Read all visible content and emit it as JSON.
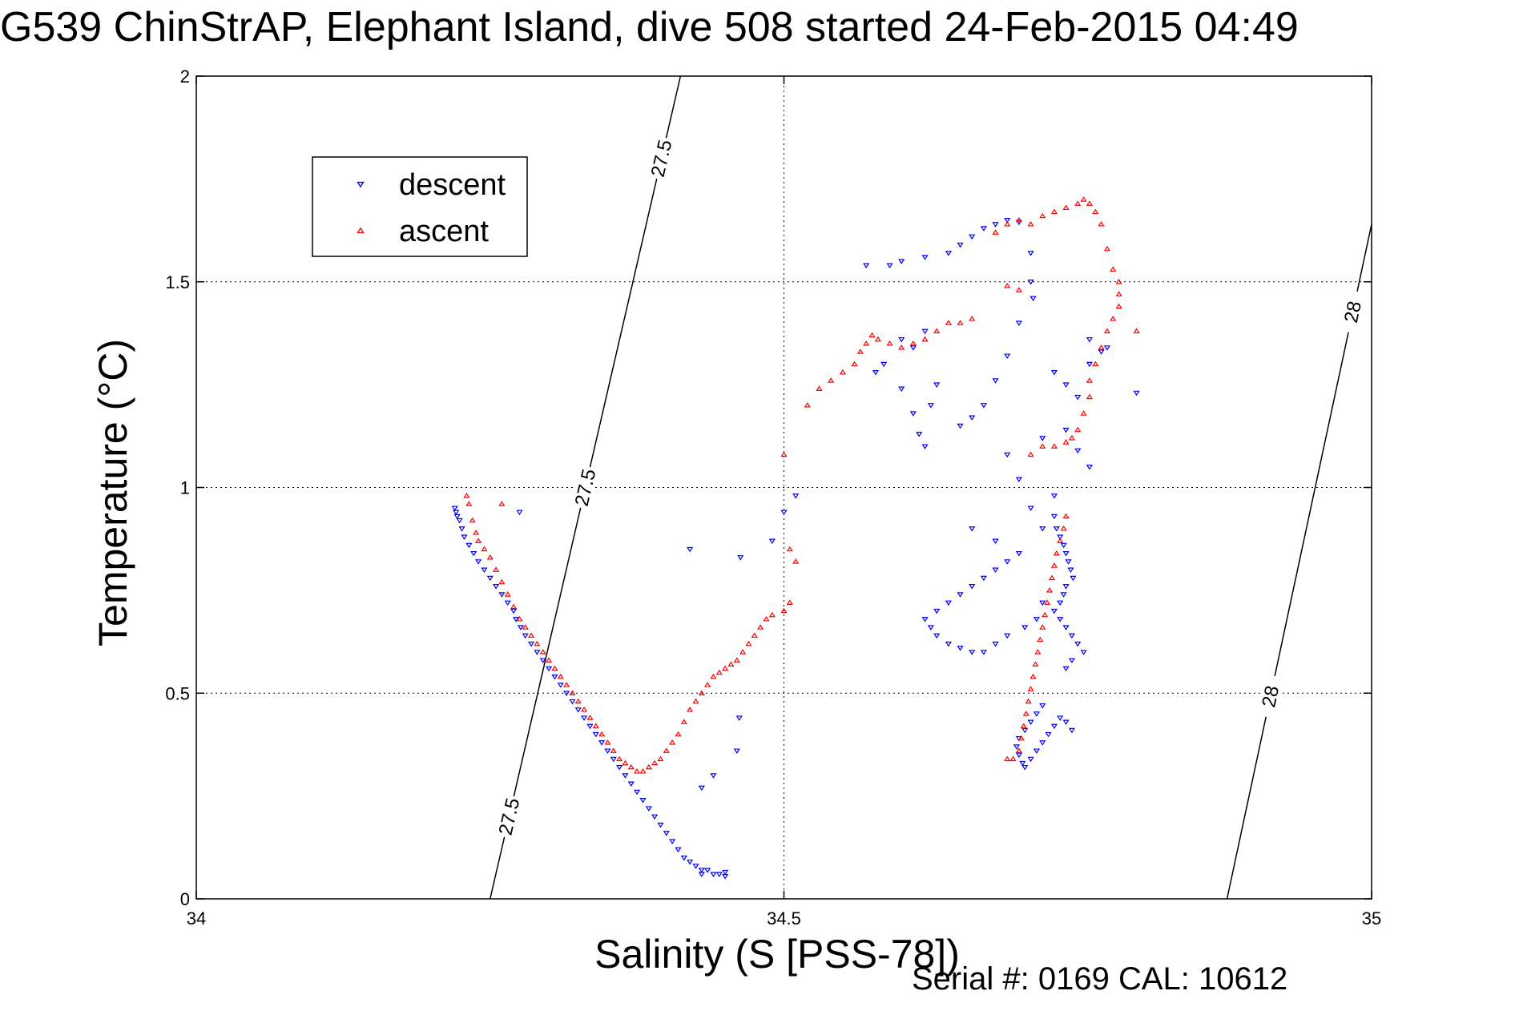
{
  "chart_data": {
    "type": "scatter",
    "title": "G539 ChinStrAP, Elephant Island, dive 508 started 24-Feb-2015 04:49",
    "xlabel": "Salinity (S [PSS-78])",
    "ylabel": "Temperature (°C)",
    "xlim": [
      34,
      35
    ],
    "ylim": [
      0,
      2
    ],
    "x_ticks": [
      "34",
      "34.5",
      "35"
    ],
    "y_ticks": [
      "0",
      "0.5",
      "1",
      "1.5",
      "2"
    ],
    "grid": true,
    "legend_position": "top-left",
    "footnote": "Serial #: 0169 CAL: 10612",
    "density_contours": [
      {
        "label": "27.5",
        "points": [
          [
            34.25,
            0.0
          ],
          [
            34.412,
            2.0
          ]
        ]
      },
      {
        "label": "28",
        "points": [
          [
            34.877,
            0.0
          ],
          [
            35.0,
            1.64
          ]
        ]
      }
    ],
    "series": [
      {
        "name": "descent",
        "color": "#0000ff",
        "marker": "triangle-down",
        "points": [
          [
            34.22,
            0.95
          ],
          [
            34.221,
            0.94
          ],
          [
            34.222,
            0.93
          ],
          [
            34.224,
            0.92
          ],
          [
            34.226,
            0.9
          ],
          [
            34.228,
            0.88
          ],
          [
            34.232,
            0.86
          ],
          [
            34.236,
            0.84
          ],
          [
            34.24,
            0.82
          ],
          [
            34.245,
            0.8
          ],
          [
            34.25,
            0.78
          ],
          [
            34.255,
            0.76
          ],
          [
            34.26,
            0.74
          ],
          [
            34.265,
            0.72
          ],
          [
            34.27,
            0.7
          ],
          [
            34.272,
            0.68
          ],
          [
            34.276,
            0.66
          ],
          [
            34.28,
            0.64
          ],
          [
            34.285,
            0.62
          ],
          [
            34.29,
            0.6
          ],
          [
            34.295,
            0.58
          ],
          [
            34.3,
            0.56
          ],
          [
            34.305,
            0.54
          ],
          [
            34.31,
            0.52
          ],
          [
            34.315,
            0.5
          ],
          [
            34.32,
            0.48
          ],
          [
            34.325,
            0.46
          ],
          [
            34.33,
            0.44
          ],
          [
            34.335,
            0.42
          ],
          [
            34.34,
            0.4
          ],
          [
            34.345,
            0.38
          ],
          [
            34.35,
            0.36
          ],
          [
            34.355,
            0.34
          ],
          [
            34.36,
            0.32
          ],
          [
            34.365,
            0.3
          ],
          [
            34.37,
            0.28
          ],
          [
            34.375,
            0.26
          ],
          [
            34.38,
            0.24
          ],
          [
            34.385,
            0.22
          ],
          [
            34.39,
            0.2
          ],
          [
            34.395,
            0.18
          ],
          [
            34.4,
            0.16
          ],
          [
            34.405,
            0.14
          ],
          [
            34.41,
            0.12
          ],
          [
            34.415,
            0.1
          ],
          [
            34.42,
            0.09
          ],
          [
            34.425,
            0.08
          ],
          [
            34.43,
            0.07
          ],
          [
            34.435,
            0.07
          ],
          [
            34.44,
            0.06
          ],
          [
            34.445,
            0.06
          ],
          [
            34.45,
            0.055
          ],
          [
            34.43,
            0.06
          ],
          [
            34.45,
            0.065
          ],
          [
            34.275,
            0.94
          ],
          [
            34.42,
            0.85
          ],
          [
            34.463,
            0.83
          ],
          [
            34.462,
            0.44
          ],
          [
            34.46,
            0.36
          ],
          [
            34.44,
            0.3
          ],
          [
            34.43,
            0.27
          ],
          [
            34.5,
            0.94
          ],
          [
            34.49,
            0.87
          ],
          [
            34.51,
            0.98
          ],
          [
            34.6,
            1.24
          ],
          [
            34.61,
            1.18
          ],
          [
            34.615,
            1.13
          ],
          [
            34.62,
            1.1
          ],
          [
            34.625,
            1.2
          ],
          [
            34.63,
            1.25
          ],
          [
            34.6,
            1.36
          ],
          [
            34.61,
            1.34
          ],
          [
            34.62,
            1.38
          ],
          [
            34.578,
            1.28
          ],
          [
            34.585,
            1.3
          ],
          [
            34.57,
            1.54
          ],
          [
            34.59,
            1.54
          ],
          [
            34.6,
            1.55
          ],
          [
            34.62,
            1.56
          ],
          [
            34.64,
            1.57
          ],
          [
            34.65,
            1.59
          ],
          [
            34.66,
            1.61
          ],
          [
            34.67,
            1.63
          ],
          [
            34.68,
            1.64
          ],
          [
            34.69,
            1.65
          ],
          [
            34.7,
            1.645
          ],
          [
            34.71,
            1.57
          ],
          [
            34.71,
            1.5
          ],
          [
            34.712,
            1.46
          ],
          [
            34.7,
            1.4
          ],
          [
            34.69,
            1.32
          ],
          [
            34.68,
            1.26
          ],
          [
            34.67,
            1.2
          ],
          [
            34.66,
            1.17
          ],
          [
            34.65,
            1.15
          ],
          [
            34.69,
            1.08
          ],
          [
            34.7,
            1.02
          ],
          [
            34.72,
            1.12
          ],
          [
            34.73,
            1.28
          ],
          [
            34.74,
            1.25
          ],
          [
            34.75,
            1.22
          ],
          [
            34.76,
            1.3
          ],
          [
            34.77,
            1.33
          ],
          [
            34.76,
            1.36
          ],
          [
            34.775,
            1.34
          ],
          [
            34.74,
            1.14
          ],
          [
            34.75,
            1.09
          ],
          [
            34.76,
            1.05
          ],
          [
            34.73,
            0.98
          ],
          [
            34.71,
            0.95
          ],
          [
            34.72,
            0.9
          ],
          [
            34.8,
            1.23
          ],
          [
            34.72,
            0.72
          ],
          [
            34.715,
            0.68
          ],
          [
            34.705,
            0.66
          ],
          [
            34.69,
            0.64
          ],
          [
            34.68,
            0.62
          ],
          [
            34.67,
            0.6
          ],
          [
            34.66,
            0.6
          ],
          [
            34.65,
            0.61
          ],
          [
            34.64,
            0.62
          ],
          [
            34.63,
            0.64
          ],
          [
            34.625,
            0.66
          ],
          [
            34.62,
            0.68
          ],
          [
            34.63,
            0.7
          ],
          [
            34.64,
            0.72
          ],
          [
            34.65,
            0.74
          ],
          [
            34.66,
            0.76
          ],
          [
            34.67,
            0.78
          ],
          [
            34.68,
            0.8
          ],
          [
            34.69,
            0.82
          ],
          [
            34.7,
            0.84
          ],
          [
            34.68,
            0.87
          ],
          [
            34.66,
            0.9
          ],
          [
            34.73,
            0.93
          ],
          [
            34.732,
            0.9
          ],
          [
            34.735,
            0.88
          ],
          [
            34.738,
            0.86
          ],
          [
            34.74,
            0.84
          ],
          [
            34.742,
            0.82
          ],
          [
            34.744,
            0.8
          ],
          [
            34.746,
            0.78
          ],
          [
            34.74,
            0.76
          ],
          [
            34.738,
            0.74
          ],
          [
            34.735,
            0.72
          ],
          [
            34.73,
            0.7
          ],
          [
            34.735,
            0.68
          ],
          [
            34.74,
            0.66
          ],
          [
            34.745,
            0.64
          ],
          [
            34.75,
            0.62
          ],
          [
            34.755,
            0.6
          ],
          [
            34.745,
            0.58
          ],
          [
            34.74,
            0.56
          ],
          [
            34.72,
            0.47
          ],
          [
            34.715,
            0.45
          ],
          [
            34.71,
            0.43
          ],
          [
            34.705,
            0.41
          ],
          [
            34.7,
            0.39
          ],
          [
            34.698,
            0.37
          ],
          [
            34.7,
            0.35
          ],
          [
            34.703,
            0.33
          ],
          [
            34.705,
            0.32
          ],
          [
            34.71,
            0.34
          ],
          [
            34.715,
            0.36
          ],
          [
            34.72,
            0.38
          ],
          [
            34.725,
            0.4
          ],
          [
            34.73,
            0.42
          ],
          [
            34.735,
            0.44
          ],
          [
            34.74,
            0.43
          ],
          [
            34.745,
            0.41
          ]
        ]
      },
      {
        "name": "ascent",
        "color": "#ff0000",
        "marker": "triangle-up",
        "points": [
          [
            34.23,
            0.98
          ],
          [
            34.232,
            0.96
          ],
          [
            34.235,
            0.92
          ],
          [
            34.238,
            0.89
          ],
          [
            34.24,
            0.87
          ],
          [
            34.245,
            0.85
          ],
          [
            34.25,
            0.83
          ],
          [
            34.255,
            0.8
          ],
          [
            34.26,
            0.77
          ],
          [
            34.265,
            0.74
          ],
          [
            34.27,
            0.71
          ],
          [
            34.275,
            0.68
          ],
          [
            34.28,
            0.66
          ],
          [
            34.285,
            0.64
          ],
          [
            34.29,
            0.62
          ],
          [
            34.295,
            0.6
          ],
          [
            34.3,
            0.58
          ],
          [
            34.305,
            0.56
          ],
          [
            34.31,
            0.54
          ],
          [
            34.315,
            0.52
          ],
          [
            34.32,
            0.5
          ],
          [
            34.325,
            0.48
          ],
          [
            34.33,
            0.46
          ],
          [
            34.335,
            0.44
          ],
          [
            34.34,
            0.42
          ],
          [
            34.345,
            0.4
          ],
          [
            34.35,
            0.38
          ],
          [
            34.355,
            0.36
          ],
          [
            34.36,
            0.34
          ],
          [
            34.365,
            0.33
          ],
          [
            34.37,
            0.32
          ],
          [
            34.375,
            0.31
          ],
          [
            34.38,
            0.31
          ],
          [
            34.385,
            0.32
          ],
          [
            34.39,
            0.33
          ],
          [
            34.395,
            0.34
          ],
          [
            34.4,
            0.36
          ],
          [
            34.405,
            0.38
          ],
          [
            34.41,
            0.4
          ],
          [
            34.415,
            0.43
          ],
          [
            34.42,
            0.46
          ],
          [
            34.425,
            0.48
          ],
          [
            34.43,
            0.5
          ],
          [
            34.435,
            0.52
          ],
          [
            34.44,
            0.54
          ],
          [
            34.445,
            0.55
          ],
          [
            34.45,
            0.56
          ],
          [
            34.455,
            0.57
          ],
          [
            34.46,
            0.58
          ],
          [
            34.465,
            0.6
          ],
          [
            34.47,
            0.62
          ],
          [
            34.475,
            0.64
          ],
          [
            34.48,
            0.66
          ],
          [
            34.485,
            0.68
          ],
          [
            34.49,
            0.69
          ],
          [
            34.5,
            0.7
          ],
          [
            34.505,
            0.72
          ],
          [
            34.26,
            0.96
          ],
          [
            34.5,
            1.08
          ],
          [
            34.505,
            0.85
          ],
          [
            34.51,
            0.82
          ],
          [
            34.52,
            1.2
          ],
          [
            34.53,
            1.24
          ],
          [
            34.54,
            1.26
          ],
          [
            34.55,
            1.28
          ],
          [
            34.56,
            1.3
          ],
          [
            34.565,
            1.33
          ],
          [
            34.57,
            1.35
          ],
          [
            34.575,
            1.37
          ],
          [
            34.58,
            1.36
          ],
          [
            34.59,
            1.35
          ],
          [
            34.6,
            1.34
          ],
          [
            34.61,
            1.35
          ],
          [
            34.62,
            1.36
          ],
          [
            34.63,
            1.38
          ],
          [
            34.64,
            1.4
          ],
          [
            34.65,
            1.4
          ],
          [
            34.66,
            1.41
          ],
          [
            34.68,
            1.62
          ],
          [
            34.69,
            1.64
          ],
          [
            34.7,
            1.65
          ],
          [
            34.71,
            1.64
          ],
          [
            34.72,
            1.66
          ],
          [
            34.73,
            1.67
          ],
          [
            34.74,
            1.68
          ],
          [
            34.75,
            1.69
          ],
          [
            34.755,
            1.7
          ],
          [
            34.76,
            1.69
          ],
          [
            34.765,
            1.67
          ],
          [
            34.77,
            1.64
          ],
          [
            34.775,
            1.58
          ],
          [
            34.78,
            1.53
          ],
          [
            34.785,
            1.5
          ],
          [
            34.785,
            1.47
          ],
          [
            34.785,
            1.44
          ],
          [
            34.78,
            1.41
          ],
          [
            34.775,
            1.38
          ],
          [
            34.77,
            1.34
          ],
          [
            34.765,
            1.3
          ],
          [
            34.76,
            1.26
          ],
          [
            34.76,
            1.22
          ],
          [
            34.755,
            1.18
          ],
          [
            34.75,
            1.14
          ],
          [
            34.745,
            1.12
          ],
          [
            34.74,
            1.11
          ],
          [
            34.73,
            1.1
          ],
          [
            34.72,
            1.1
          ],
          [
            34.71,
            1.08
          ],
          [
            34.7,
            1.48
          ],
          [
            34.69,
            1.49
          ],
          [
            34.8,
            1.38
          ],
          [
            34.74,
            0.93
          ],
          [
            34.738,
            0.9
          ],
          [
            34.735,
            0.87
          ],
          [
            34.732,
            0.84
          ],
          [
            34.73,
            0.81
          ],
          [
            34.728,
            0.78
          ],
          [
            34.726,
            0.75
          ],
          [
            34.724,
            0.72
          ],
          [
            34.722,
            0.69
          ],
          [
            34.72,
            0.66
          ],
          [
            34.718,
            0.63
          ],
          [
            34.716,
            0.6
          ],
          [
            34.714,
            0.57
          ],
          [
            34.712,
            0.54
          ],
          [
            34.71,
            0.51
          ],
          [
            34.708,
            0.48
          ],
          [
            34.706,
            0.45
          ],
          [
            34.704,
            0.42
          ],
          [
            34.702,
            0.39
          ],
          [
            34.7,
            0.36
          ],
          [
            34.695,
            0.34
          ],
          [
            34.69,
            0.34
          ]
        ]
      }
    ]
  }
}
